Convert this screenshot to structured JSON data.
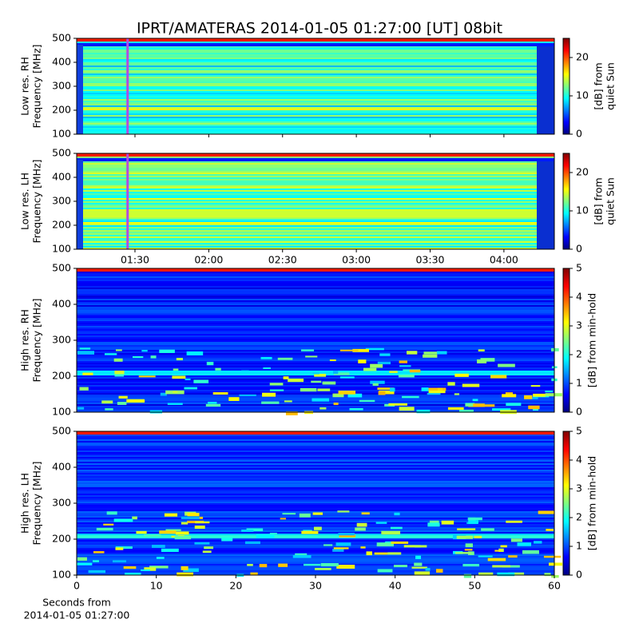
{
  "title": "IPRT/AMATERAS 2014-01-05 01:27:00 [UT]   08bit",
  "chart_data": [
    {
      "type": "heatmap",
      "ylabel": [
        "Low res. RH",
        "Frequency [MHz]"
      ],
      "ylim": [
        100,
        500
      ],
      "yticks": [
        100,
        200,
        300,
        400,
        500
      ],
      "xlim": [
        66.3,
        260.5
      ],
      "vline": {
        "x": 87,
        "color": "#b44be0"
      },
      "colorbar": {
        "clim": [
          0,
          25
        ],
        "cticks": [
          0,
          10,
          20
        ],
        "label": [
          "[dB] from",
          "quiet Sun"
        ]
      }
    },
    {
      "type": "heatmap",
      "ylabel": [
        "Low res. LH",
        "Frequency [MHz]"
      ],
      "ylim": [
        100,
        500
      ],
      "yticks": [
        100,
        200,
        300,
        400,
        500
      ],
      "xlim": [
        66.3,
        260.5
      ],
      "vline": {
        "x": 87,
        "color": "#b44be0"
      },
      "xticks": [
        {
          "value": 90,
          "label": "01:30"
        },
        {
          "value": 120,
          "label": "02:00"
        },
        {
          "value": 150,
          "label": "02:30"
        },
        {
          "value": 180,
          "label": "03:00"
        },
        {
          "value": 210,
          "label": "03:30"
        },
        {
          "value": 240,
          "label": "04:00"
        }
      ],
      "colorbar": {
        "clim": [
          0,
          25
        ],
        "cticks": [
          0,
          10,
          20
        ],
        "label": [
          "[dB] from",
          "quiet Sun"
        ]
      }
    },
    {
      "type": "heatmap",
      "ylabel": [
        "High res. RH",
        "Frequency [MHz]"
      ],
      "ylim": [
        100,
        500
      ],
      "yticks": [
        100,
        200,
        300,
        400,
        500
      ],
      "xlim": [
        0,
        60
      ],
      "colorbar": {
        "clim": [
          0,
          5
        ],
        "cticks": [
          0,
          1,
          2,
          3,
          4,
          5
        ],
        "label": [
          "[dB] from min-hold"
        ]
      }
    },
    {
      "type": "heatmap",
      "ylabel": [
        "High res. LH",
        "Frequency [MHz]"
      ],
      "ylim": [
        100,
        500
      ],
      "yticks": [
        100,
        200,
        300,
        400,
        500
      ],
      "xlim": [
        0,
        60
      ],
      "xticks": [
        0,
        10,
        20,
        30,
        40,
        50,
        60
      ],
      "xlabel": [
        "Seconds from",
        "2014-01-05 01:27:00"
      ],
      "colorbar": {
        "clim": [
          0,
          5
        ],
        "cticks": [
          0,
          1,
          2,
          3,
          4,
          5
        ],
        "label": [
          "[dB] from min-hold"
        ]
      }
    }
  ]
}
